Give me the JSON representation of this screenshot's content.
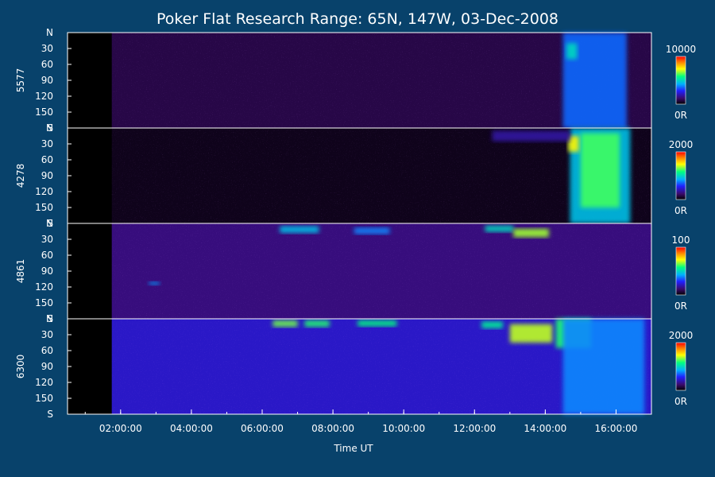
{
  "chart_data": {
    "type": "heatmap",
    "title": "Poker Flat Research Range: 65N, 147W, 03-Dec-2008",
    "xlabel": "Time UT",
    "x_ticks": [
      "02:00:00",
      "04:00:00",
      "06:00:00",
      "08:00:00",
      "10:00:00",
      "12:00:00",
      "14:00:00",
      "16:00:00"
    ],
    "x_range_hours": [
      0.5,
      17.0
    ],
    "data_start_hour": 1.75,
    "y_ticks": [
      "N",
      "30",
      "60",
      "90",
      "120",
      "150",
      "S"
    ],
    "y_range": [
      0,
      180
    ],
    "colorbar_min_label": "0R",
    "panels": [
      {
        "label": "5577",
        "colorbar_max": "10000",
        "background_level": 0.08,
        "features": [
          {
            "t0": 14.5,
            "t1": 16.3,
            "y0": 0,
            "y1": 180,
            "level": 0.35
          },
          {
            "t0": 14.6,
            "t1": 14.9,
            "y0": 20,
            "y1": 50,
            "level": 0.5
          }
        ]
      },
      {
        "label": "4278",
        "colorbar_max": "2000",
        "background_level": 0.03,
        "features": [
          {
            "t0": 14.7,
            "t1": 16.4,
            "y0": 0,
            "y1": 180,
            "level": 0.45
          },
          {
            "t0": 15.0,
            "t1": 16.1,
            "y0": 10,
            "y1": 150,
            "level": 0.62
          },
          {
            "t0": 14.65,
            "t1": 14.95,
            "y0": 15,
            "y1": 45,
            "level": 0.75
          },
          {
            "t0": 12.5,
            "t1": 14.7,
            "y0": 5,
            "y1": 25,
            "level": 0.18
          }
        ]
      },
      {
        "label": "4861",
        "colorbar_max": "100",
        "background_level": 0.14,
        "features": [
          {
            "t0": 6.5,
            "t1": 7.6,
            "y0": 5,
            "y1": 18,
            "level": 0.45
          },
          {
            "t0": 8.6,
            "t1": 9.6,
            "y0": 8,
            "y1": 20,
            "level": 0.38
          },
          {
            "t0": 12.3,
            "t1": 13.1,
            "y0": 4,
            "y1": 16,
            "level": 0.5
          },
          {
            "t0": 13.1,
            "t1": 14.1,
            "y0": 10,
            "y1": 26,
            "level": 0.68
          },
          {
            "t0": 2.8,
            "t1": 3.1,
            "y0": 110,
            "y1": 116,
            "level": 0.4
          }
        ]
      },
      {
        "label": "6300",
        "colorbar_max": "2000",
        "background_level": 0.22,
        "features": [
          {
            "t0": 6.3,
            "t1": 7.0,
            "y0": 3,
            "y1": 15,
            "level": 0.65
          },
          {
            "t0": 7.2,
            "t1": 7.9,
            "y0": 3,
            "y1": 15,
            "level": 0.6
          },
          {
            "t0": 8.7,
            "t1": 9.8,
            "y0": 3,
            "y1": 14,
            "level": 0.58
          },
          {
            "t0": 12.2,
            "t1": 12.8,
            "y0": 5,
            "y1": 18,
            "level": 0.55
          },
          {
            "t0": 13.0,
            "t1": 14.2,
            "y0": 10,
            "y1": 45,
            "level": 0.7
          },
          {
            "t0": 14.3,
            "t1": 15.3,
            "y0": 0,
            "y1": 55,
            "level": 0.6
          },
          {
            "t0": 14.5,
            "t1": 16.8,
            "y0": 0,
            "y1": 180,
            "level": 0.38
          }
        ]
      }
    ]
  }
}
